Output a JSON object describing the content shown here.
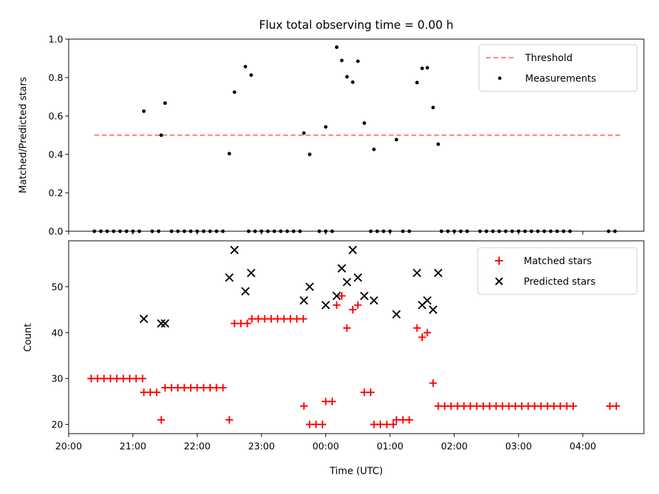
{
  "chart_data": [
    {
      "type": "scatter",
      "title": "Flux total observing time = 0.00 h",
      "xlabel": "",
      "ylabel": "Matched/Predicted stars",
      "xlim": [
        20.0,
        4.95
      ],
      "ylim": [
        0.0,
        1.0
      ],
      "yticks": [
        "0.0",
        "0.2",
        "0.4",
        "0.6",
        "0.8",
        "1.0"
      ],
      "legend_position": "top-right",
      "threshold": {
        "name": "Threshold",
        "value": 0.5,
        "x_start": 20.4,
        "x_end": 4.6,
        "color": "#ff7f7f"
      },
      "series": [
        {
          "name": "Measurements",
          "color": "#000000",
          "points": [
            [
              20.4,
              0
            ],
            [
              20.5,
              0
            ],
            [
              20.6,
              0
            ],
            [
              20.7,
              0
            ],
            [
              20.8,
              0
            ],
            [
              20.9,
              0
            ],
            [
              21.0,
              0
            ],
            [
              21.1,
              0
            ],
            [
              21.3,
              0
            ],
            [
              21.4,
              0
            ],
            [
              21.6,
              0
            ],
            [
              21.7,
              0
            ],
            [
              21.8,
              0
            ],
            [
              21.9,
              0
            ],
            [
              22.0,
              0
            ],
            [
              22.1,
              0
            ],
            [
              22.2,
              0
            ],
            [
              22.3,
              0
            ],
            [
              22.4,
              0
            ],
            [
              22.8,
              0
            ],
            [
              22.9,
              0
            ],
            [
              23.0,
              0
            ],
            [
              23.1,
              0
            ],
            [
              23.2,
              0
            ],
            [
              23.3,
              0
            ],
            [
              23.4,
              0
            ],
            [
              23.5,
              0
            ],
            [
              23.6,
              0
            ],
            [
              23.9,
              0
            ],
            [
              24.0,
              0
            ],
            [
              24.1,
              0
            ],
            [
              24.7,
              0
            ],
            [
              24.8,
              0
            ],
            [
              24.9,
              0
            ],
            [
              25.0,
              0
            ],
            [
              25.2,
              0
            ],
            [
              25.3,
              0
            ],
            [
              25.8,
              0
            ],
            [
              25.9,
              0
            ],
            [
              26.0,
              0
            ],
            [
              26.1,
              0
            ],
            [
              26.2,
              0
            ],
            [
              26.4,
              0
            ],
            [
              26.5,
              0
            ],
            [
              26.6,
              0
            ],
            [
              26.7,
              0
            ],
            [
              26.8,
              0
            ],
            [
              26.9,
              0
            ],
            [
              27.0,
              0
            ],
            [
              27.1,
              0
            ],
            [
              27.2,
              0
            ],
            [
              27.3,
              0
            ],
            [
              27.4,
              0
            ],
            [
              27.5,
              0
            ],
            [
              27.6,
              0
            ],
            [
              27.7,
              0
            ],
            [
              27.8,
              0
            ],
            [
              28.4,
              0
            ],
            [
              28.5,
              0
            ],
            [
              21.17,
              0.625
            ],
            [
              21.44,
              0.5
            ],
            [
              21.5,
              0.667
            ],
            [
              22.5,
              0.404
            ],
            [
              22.58,
              0.724
            ],
            [
              22.75,
              0.857
            ],
            [
              22.84,
              0.813
            ],
            [
              23.66,
              0.511
            ],
            [
              23.75,
              0.4
            ],
            [
              24.0,
              0.543
            ],
            [
              24.17,
              0.958
            ],
            [
              24.25,
              0.889
            ],
            [
              24.33,
              0.804
            ],
            [
              24.42,
              0.776
            ],
            [
              24.5,
              0.885
            ],
            [
              24.6,
              0.563
            ],
            [
              24.75,
              0.426
            ],
            [
              25.1,
              0.477
            ],
            [
              25.42,
              0.774
            ],
            [
              25.5,
              0.848
            ],
            [
              25.58,
              0.851
            ],
            [
              25.67,
              0.644
            ],
            [
              25.75,
              0.453
            ]
          ]
        }
      ]
    },
    {
      "type": "scatter",
      "title": "",
      "xlabel": "Time (UTC)",
      "ylabel": "Count",
      "xlim": [
        20.0,
        4.95
      ],
      "ylim": [
        18,
        60
      ],
      "yticks": [
        "20",
        "30",
        "40",
        "50"
      ],
      "xticks": [
        "20:00",
        "21:00",
        "22:00",
        "23:00",
        "00:00",
        "01:00",
        "02:00",
        "03:00",
        "04:00"
      ],
      "legend_position": "top-right",
      "series": [
        {
          "name": "Matched stars",
          "color": "#ff0000",
          "marker": "plus",
          "points": [
            [
              20.35,
              30
            ],
            [
              20.45,
              30
            ],
            [
              20.55,
              30
            ],
            [
              20.65,
              30
            ],
            [
              20.75,
              30
            ],
            [
              20.85,
              30
            ],
            [
              20.95,
              30
            ],
            [
              21.05,
              30
            ],
            [
              21.15,
              30
            ],
            [
              21.17,
              27
            ],
            [
              21.27,
              27
            ],
            [
              21.37,
              27
            ],
            [
              21.44,
              21
            ],
            [
              21.5,
              28
            ],
            [
              21.6,
              28
            ],
            [
              21.7,
              28
            ],
            [
              21.8,
              28
            ],
            [
              21.9,
              28
            ],
            [
              22.0,
              28
            ],
            [
              22.1,
              28
            ],
            [
              22.2,
              28
            ],
            [
              22.3,
              28
            ],
            [
              22.4,
              28
            ],
            [
              22.5,
              21
            ],
            [
              22.58,
              42
            ],
            [
              22.68,
              42
            ],
            [
              22.78,
              42
            ],
            [
              22.85,
              43
            ],
            [
              22.95,
              43
            ],
            [
              23.05,
              43
            ],
            [
              23.15,
              43
            ],
            [
              23.25,
              43
            ],
            [
              23.35,
              43
            ],
            [
              23.45,
              43
            ],
            [
              23.55,
              43
            ],
            [
              23.65,
              43
            ],
            [
              23.66,
              24
            ],
            [
              23.75,
              20
            ],
            [
              23.85,
              20
            ],
            [
              23.95,
              20
            ],
            [
              24.0,
              25
            ],
            [
              24.1,
              25
            ],
            [
              24.17,
              46
            ],
            [
              24.25,
              48
            ],
            [
              24.33,
              41
            ],
            [
              24.42,
              45
            ],
            [
              24.5,
              46
            ],
            [
              24.6,
              27
            ],
            [
              24.7,
              27
            ],
            [
              24.75,
              20
            ],
            [
              24.85,
              20
            ],
            [
              24.95,
              20
            ],
            [
              25.05,
              20
            ],
            [
              25.1,
              21
            ],
            [
              25.2,
              21
            ],
            [
              25.3,
              21
            ],
            [
              25.42,
              41
            ],
            [
              25.5,
              39
            ],
            [
              25.58,
              40
            ],
            [
              25.67,
              29
            ],
            [
              25.75,
              24
            ],
            [
              25.85,
              24
            ],
            [
              25.95,
              24
            ],
            [
              26.05,
              24
            ],
            [
              26.15,
              24
            ],
            [
              26.25,
              24
            ],
            [
              26.35,
              24
            ],
            [
              26.45,
              24
            ],
            [
              26.55,
              24
            ],
            [
              26.65,
              24
            ],
            [
              26.75,
              24
            ],
            [
              26.85,
              24
            ],
            [
              26.95,
              24
            ],
            [
              27.05,
              24
            ],
            [
              27.15,
              24
            ],
            [
              27.25,
              24
            ],
            [
              27.35,
              24
            ],
            [
              27.45,
              24
            ],
            [
              27.55,
              24
            ],
            [
              27.65,
              24
            ],
            [
              27.75,
              24
            ],
            [
              27.85,
              24
            ],
            [
              28.42,
              24
            ],
            [
              28.52,
              24
            ]
          ]
        },
        {
          "name": "Predicted stars",
          "color": "#000000",
          "marker": "x",
          "points": [
            [
              21.17,
              43
            ],
            [
              21.44,
              42
            ],
            [
              21.5,
              42
            ],
            [
              22.5,
              52
            ],
            [
              22.58,
              58
            ],
            [
              22.75,
              49
            ],
            [
              22.84,
              53
            ],
            [
              23.66,
              47
            ],
            [
              23.75,
              50
            ],
            [
              24.0,
              46
            ],
            [
              24.17,
              48
            ],
            [
              24.25,
              54
            ],
            [
              24.33,
              51
            ],
            [
              24.42,
              58
            ],
            [
              24.5,
              52
            ],
            [
              24.6,
              48
            ],
            [
              24.75,
              47
            ],
            [
              25.1,
              44
            ],
            [
              25.42,
              53
            ],
            [
              25.5,
              46
            ],
            [
              25.58,
              47
            ],
            [
              25.67,
              45
            ],
            [
              25.75,
              53
            ]
          ]
        }
      ]
    }
  ]
}
